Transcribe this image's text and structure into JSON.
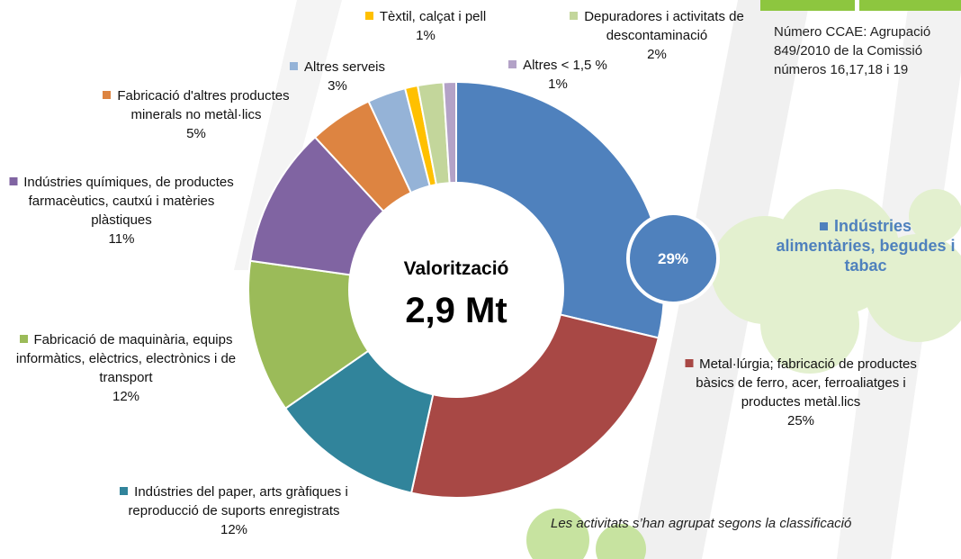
{
  "chart_data": {
    "type": "donut",
    "center_title": "Valorització",
    "center_value": "2,9 Mt",
    "categories": [
      "Indústries alimentàries, begudes i tabac",
      "Metal·lúrgia; fabricació de productes bàsics de ferro, acer, ferroaliatges i productes metàl.lics",
      "Indústries del paper, arts gràfiques i reproducció de suports enregistrats",
      "Fabricació de maquinària, equips informàtics, elèctrics, electrònics i de transport",
      "Indústries químiques, de productes farmacèutics, cautxú i matèries plàstiques",
      "Fabricació d'altres productes minerals no metàl·lics",
      "Altres serveis",
      "Tèxtil, calçat i pell",
      "Depuradores i activitats de descontaminació",
      "Altres < 1,5 %"
    ],
    "values": [
      29,
      25,
      12,
      12,
      11,
      5,
      3,
      1,
      2,
      1
    ],
    "value_labels": [
      "29%",
      "25%",
      "12%",
      "12%",
      "11%",
      "5%",
      "3%",
      "1%",
      "2%",
      "1%"
    ],
    "colors": [
      "#4f81bd",
      "#a84845",
      "#31849b",
      "#9bbb59",
      "#8064a2",
      "#dd8441",
      "#95b3d7",
      "#ffc000",
      "#c3d69b",
      "#b3a2c7"
    ],
    "note_right": "Número CCAE: Agrupació 849/2010 de la Comissió números 16,17,18 i 19",
    "note_bottom": "Les activitats s’han agrupat segons la classificació"
  }
}
